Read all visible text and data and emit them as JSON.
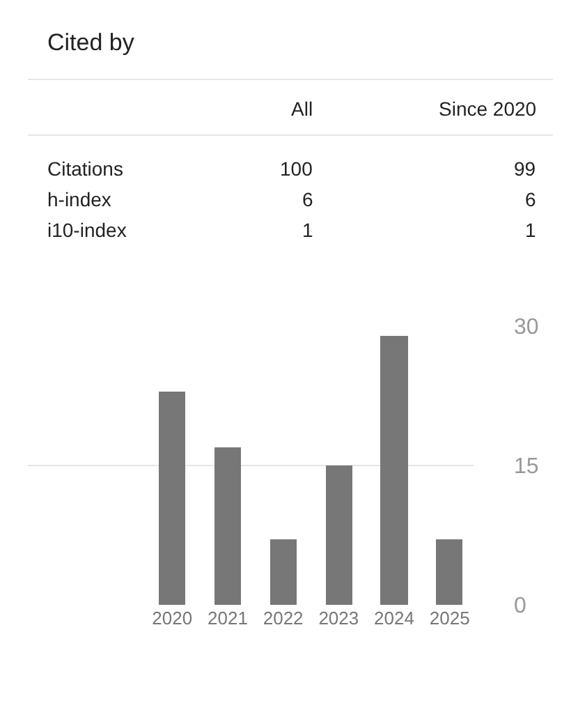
{
  "chart_data": [
    {
      "type": "other",
      "title": "Cited by",
      "categories": [
        "Citations",
        "h-index",
        "i10-index"
      ],
      "series": [
        {
          "name": "All",
          "values": [
            100,
            6,
            1
          ]
        },
        {
          "name": "Since 2020",
          "values": [
            99,
            6,
            1
          ]
        }
      ],
      "data_labels": true
    },
    {
      "type": "bar",
      "categories": [
        "2020",
        "2021",
        "2022",
        "2023",
        "2024",
        "2025"
      ],
      "values": [
        23,
        17,
        7,
        15,
        29,
        7
      ],
      "color": "#777777",
      "ylim": [
        0,
        30
      ],
      "yticks": [
        0,
        15,
        30
      ],
      "grid": "y"
    }
  ]
}
